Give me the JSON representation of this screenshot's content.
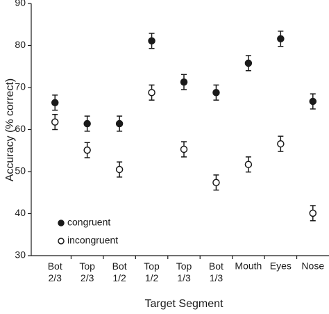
{
  "chart_data": {
    "type": "errorbar-dot",
    "x_label": "Target Segment",
    "y_label": "Accuracy (% correct)",
    "categories": [
      "Bot 2/3",
      "Top 2/3",
      "Bot 1/2",
      "Top 1/2",
      "Top 1/3",
      "Bot 1/3",
      "Mouth",
      "Eyes",
      "Nose"
    ],
    "series": [
      {
        "name": "congruent",
        "color": "#1a1a1a",
        "filled": true,
        "values": [
          66.4,
          61.4,
          61.4,
          81.1,
          71.3,
          68.8,
          75.8,
          81.6,
          66.7
        ],
        "errors": [
          1.8,
          1.8,
          1.8,
          1.8,
          1.8,
          1.8,
          1.8,
          1.8,
          1.8
        ]
      },
      {
        "name": "incongruent",
        "color": "#1a1a1a",
        "filled": false,
        "values": [
          61.8,
          55.1,
          50.5,
          68.8,
          55.3,
          47.4,
          51.7,
          56.6,
          40.1
        ],
        "errors": [
          1.8,
          1.8,
          1.8,
          1.8,
          1.8,
          1.8,
          1.8,
          1.8,
          1.8
        ]
      }
    ],
    "ylim": [
      30,
      90
    ],
    "yticks": [
      30,
      40,
      50,
      60,
      70,
      80,
      90
    ],
    "legend": "lower left"
  }
}
